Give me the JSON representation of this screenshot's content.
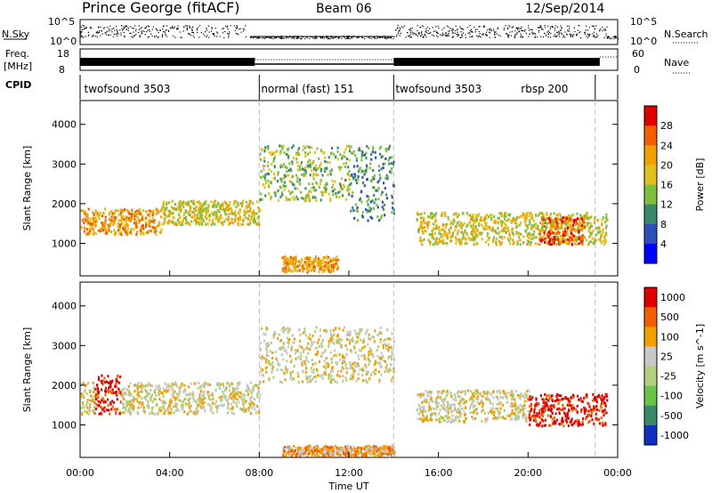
{
  "header": {
    "station": "Prince George (fitACF)",
    "beam": "Beam 06",
    "date": "12/Sep/2014"
  },
  "top_panels": {
    "nsky_label": "N.Sky",
    "nsky_ticks": [
      "10^5",
      "10^0"
    ],
    "nsearch_label": "N.Search",
    "freq_label_line1": "Freq.",
    "freq_label_line2": "[MHz]",
    "freq_ticks": [
      "18",
      "8"
    ],
    "nave_ticks": [
      "60",
      "0"
    ],
    "nave_label": "Nave",
    "cpid_label": "CPID",
    "cpid_segments": [
      {
        "label": "twofsound 3503",
        "start_h": 0,
        "end_h": 8
      },
      {
        "label": "normal (fast) 151",
        "start_h": 8,
        "end_h": 14
      },
      {
        "label": "twofsound 3503",
        "start_h": 14,
        "end_h": 23
      },
      {
        "label": "rbsp 200",
        "start_h": 19,
        "end_h": 23
      }
    ]
  },
  "x_axis": {
    "title": "Time UT",
    "ticks": [
      "00:00",
      "04:00",
      "08:00",
      "12:00",
      "16:00",
      "20:00",
      "00:00"
    ]
  },
  "chart_data": [
    {
      "type": "heatmap",
      "title": "",
      "xlabel": "Time UT",
      "ylabel": "Slant Range [km]",
      "xlim_hours": [
        0,
        24
      ],
      "ylim_km": [
        180,
        4600
      ],
      "y_ticks": [
        "1000",
        "2000",
        "3000",
        "4000"
      ],
      "colorbar": {
        "label": "Power [dB]",
        "ticks": [
          "4",
          "8",
          "12",
          "16",
          "20",
          "24",
          "28"
        ],
        "colors": [
          "#0000ff",
          "#2f4fb8",
          "#3a8a6a",
          "#7fbf3f",
          "#e0c020",
          "#f0a000",
          "#f06000",
          "#e00000"
        ]
      },
      "scatter_bands": [
        {
          "t0": 0.0,
          "t1": 3.6,
          "r0": 1250,
          "r1": 1900,
          "level": 5
        },
        {
          "t0": 3.6,
          "t1": 8.0,
          "r0": 1500,
          "r1": 2100,
          "level": 4
        },
        {
          "t0": 8.0,
          "t1": 12.0,
          "r0": 2100,
          "r1": 3500,
          "level": 3
        },
        {
          "t0": 12.0,
          "t1": 14.0,
          "r0": 1600,
          "r1": 3500,
          "level": 2
        },
        {
          "t0": 15.0,
          "t1": 23.5,
          "r0": 1000,
          "r1": 1800,
          "level": 4
        },
        {
          "t0": 9.0,
          "t1": 11.5,
          "r0": 300,
          "r1": 700,
          "level": 5
        },
        {
          "t0": 20.5,
          "t1": 22.5,
          "r0": 1000,
          "r1": 1700,
          "level": 6
        }
      ]
    },
    {
      "type": "heatmap",
      "title": "",
      "xlabel": "Time UT",
      "ylabel": "Slant Range [km]",
      "xlim_hours": [
        0,
        24
      ],
      "ylim_km": [
        180,
        4600
      ],
      "y_ticks": [
        "1000",
        "2000",
        "3000",
        "4000"
      ],
      "colorbar": {
        "label": "Velocity [m s^-1]",
        "ticks": [
          "1000",
          "500",
          "100",
          "25",
          "-25",
          "-100",
          "-500",
          "-1000"
        ],
        "colors": [
          "#1030c0",
          "#3a8a6a",
          "#6dc34a",
          "#b0d080",
          "#c8c8c8",
          "#f0a000",
          "#f06000",
          "#e00000"
        ]
      },
      "scatter_bands": [
        {
          "t0": 0.0,
          "t1": 0.6,
          "r0": 1300,
          "r1": 2100,
          "level": 4
        },
        {
          "t0": 0.6,
          "t1": 1.8,
          "r0": 1300,
          "r1": 2300,
          "level": 7
        },
        {
          "t0": 1.8,
          "t1": 8.0,
          "r0": 1300,
          "r1": 2100,
          "level": 4
        },
        {
          "t0": 8.0,
          "t1": 14.0,
          "r0": 2100,
          "r1": 3500,
          "level": 4
        },
        {
          "t0": 15.0,
          "t1": 20.0,
          "r0": 1100,
          "r1": 1900,
          "level": 4
        },
        {
          "t0": 20.0,
          "t1": 23.5,
          "r0": 1000,
          "r1": 1800,
          "level": 7
        },
        {
          "t0": 9.0,
          "t1": 14.0,
          "r0": 250,
          "r1": 500,
          "level": 5
        }
      ]
    }
  ]
}
